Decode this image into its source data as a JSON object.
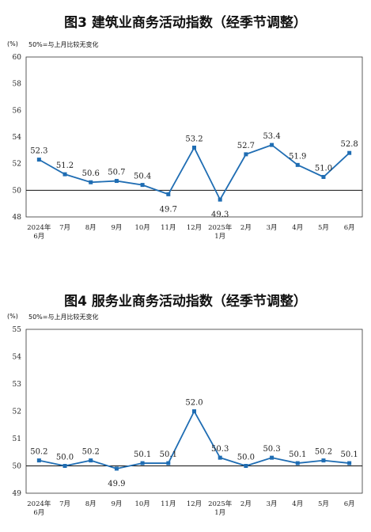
{
  "chart_data": [
    {
      "type": "line",
      "title": "图3  建筑业商务活动指数（经季节调整）",
      "unit_label": "(%)",
      "note": "50%=与上月比较无变化",
      "categories": [
        [
          "2024年",
          "6月"
        ],
        [
          "7月"
        ],
        [
          "8月"
        ],
        [
          "9月"
        ],
        [
          "10月"
        ],
        [
          "11月"
        ],
        [
          "12月"
        ],
        [
          "2025年",
          "1月"
        ],
        [
          "2月"
        ],
        [
          "3月"
        ],
        [
          "4月"
        ],
        [
          "5月"
        ],
        [
          "6月"
        ]
      ],
      "values": [
        52.3,
        51.2,
        50.6,
        50.7,
        50.4,
        49.7,
        53.2,
        49.3,
        52.7,
        53.4,
        51.9,
        51.0,
        52.8
      ],
      "value_labels": [
        "52.3",
        "51.2",
        "50.6",
        "50.7",
        "50.4",
        "49.7",
        "53.2",
        "49.3",
        "52.7",
        "53.4",
        "51.9",
        "51.0",
        "52.8"
      ],
      "ylim": [
        48,
        60
      ],
      "yticks": [
        "48",
        "50",
        "52",
        "54",
        "56",
        "58",
        "60"
      ],
      "reference_line": 50,
      "color": "#1f6db3"
    },
    {
      "type": "line",
      "title": "图4  服务业商务活动指数（经季节调整）",
      "unit_label": "(%)",
      "note": "50%=与上月比较无变化",
      "categories": [
        [
          "2024年",
          "6月"
        ],
        [
          "7月"
        ],
        [
          "8月"
        ],
        [
          "9月"
        ],
        [
          "10月"
        ],
        [
          "11月"
        ],
        [
          "12月"
        ],
        [
          "2025年",
          "1月"
        ],
        [
          "2月"
        ],
        [
          "3月"
        ],
        [
          "4月"
        ],
        [
          "5月"
        ],
        [
          "6月"
        ]
      ],
      "values": [
        50.2,
        50.0,
        50.2,
        49.9,
        50.1,
        50.1,
        52.0,
        50.3,
        50.0,
        50.3,
        50.1,
        50.2,
        50.1
      ],
      "value_labels": [
        "50.2",
        "50.0",
        "50.2",
        "49.9",
        "50.1",
        "50.1",
        "52.0",
        "50.3",
        "50.0",
        "50.3",
        "50.1",
        "50.2",
        "50.1"
      ],
      "ylim": [
        49,
        55
      ],
      "yticks": [
        "49",
        "50",
        "51",
        "52",
        "53",
        "54",
        "55"
      ],
      "reference_line": 50,
      "color": "#1f6db3"
    }
  ]
}
